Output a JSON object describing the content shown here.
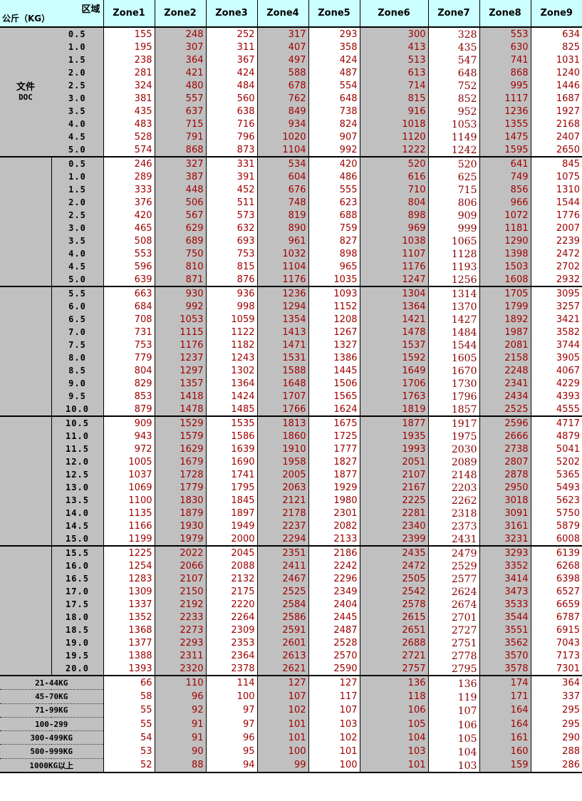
{
  "header": {
    "area_label": "区域",
    "kg_label": "公斤（KG）",
    "zones": [
      "Zone1",
      "Zone2",
      "Zone3",
      "Zone4",
      "Zone5",
      "Zone6",
      "Zone7",
      "Zone8",
      "Zone9"
    ]
  },
  "colors": {
    "header_bg": "#ccffff",
    "gray_bg": "#c0c0c0",
    "value_text": "#a00000"
  },
  "sections": [
    {
      "group_label": [
        "文件",
        "DOC"
      ],
      "rows": [
        {
          "weight": "0.5",
          "values": [
            155,
            248,
            252,
            317,
            293,
            300,
            328,
            553,
            634
          ]
        },
        {
          "weight": "1.0",
          "values": [
            195,
            307,
            311,
            407,
            358,
            413,
            435,
            630,
            825
          ]
        },
        {
          "weight": "1.5",
          "values": [
            238,
            364,
            367,
            497,
            424,
            513,
            547,
            741,
            1031
          ]
        },
        {
          "weight": "2.0",
          "values": [
            281,
            421,
            424,
            588,
            487,
            613,
            648,
            868,
            1240
          ]
        },
        {
          "weight": "2.5",
          "values": [
            324,
            480,
            484,
            678,
            554,
            714,
            752,
            995,
            1446
          ]
        },
        {
          "weight": "3.0",
          "values": [
            381,
            557,
            560,
            762,
            648,
            815,
            852,
            1117,
            1687
          ]
        },
        {
          "weight": "3.5",
          "values": [
            435,
            637,
            638,
            849,
            738,
            916,
            952,
            1236,
            1927
          ]
        },
        {
          "weight": "4.0",
          "values": [
            483,
            715,
            716,
            934,
            824,
            1018,
            1053,
            1355,
            2168
          ]
        },
        {
          "weight": "4.5",
          "values": [
            528,
            791,
            796,
            1020,
            907,
            1120,
            1149,
            1475,
            2407
          ]
        },
        {
          "weight": "5.0",
          "values": [
            574,
            868,
            873,
            1104,
            992,
            1222,
            1242,
            1595,
            2650
          ]
        }
      ]
    },
    {
      "rows": [
        {
          "weight": "0.5",
          "values": [
            246,
            327,
            331,
            534,
            420,
            520,
            520,
            641,
            845
          ]
        },
        {
          "weight": "1.0",
          "values": [
            289,
            387,
            391,
            604,
            486,
            616,
            625,
            749,
            1075
          ]
        },
        {
          "weight": "1.5",
          "values": [
            333,
            448,
            452,
            676,
            555,
            710,
            715,
            856,
            1310
          ]
        },
        {
          "weight": "2.0",
          "values": [
            376,
            506,
            511,
            748,
            623,
            804,
            806,
            966,
            1544
          ]
        },
        {
          "weight": "2.5",
          "values": [
            420,
            567,
            573,
            819,
            688,
            898,
            909,
            1072,
            1776
          ]
        },
        {
          "weight": "3.0",
          "values": [
            465,
            629,
            632,
            890,
            759,
            969,
            999,
            1181,
            2007
          ]
        },
        {
          "weight": "3.5",
          "values": [
            508,
            689,
            693,
            961,
            827,
            1038,
            1065,
            1290,
            2239
          ]
        },
        {
          "weight": "4.0",
          "values": [
            553,
            750,
            753,
            1032,
            898,
            1107,
            1128,
            1398,
            2472
          ]
        },
        {
          "weight": "4.5",
          "values": [
            596,
            810,
            815,
            1104,
            965,
            1176,
            1193,
            1503,
            2702
          ]
        },
        {
          "weight": "5.0",
          "values": [
            639,
            871,
            876,
            1176,
            1035,
            1247,
            1256,
            1608,
            2932
          ]
        }
      ]
    },
    {
      "rows": [
        {
          "weight": "5.5",
          "values": [
            663,
            930,
            936,
            1236,
            1093,
            1304,
            1314,
            1705,
            3095
          ]
        },
        {
          "weight": "6.0",
          "values": [
            684,
            992,
            998,
            1294,
            1152,
            1364,
            1370,
            1799,
            3257
          ]
        },
        {
          "weight": "6.5",
          "values": [
            708,
            1053,
            1059,
            1354,
            1208,
            1421,
            1427,
            1892,
            3421
          ]
        },
        {
          "weight": "7.0",
          "values": [
            731,
            1115,
            1122,
            1413,
            1267,
            1478,
            1484,
            1987,
            3582
          ]
        },
        {
          "weight": "7.5",
          "values": [
            753,
            1176,
            1182,
            1471,
            1327,
            1537,
            1544,
            2081,
            3744
          ]
        },
        {
          "weight": "8.0",
          "values": [
            779,
            1237,
            1243,
            1531,
            1386,
            1592,
            1605,
            2158,
            3905
          ]
        },
        {
          "weight": "8.5",
          "values": [
            804,
            1297,
            1302,
            1588,
            1445,
            1649,
            1670,
            2248,
            4067
          ]
        },
        {
          "weight": "9.0",
          "values": [
            829,
            1357,
            1364,
            1648,
            1506,
            1706,
            1730,
            2341,
            4229
          ]
        },
        {
          "weight": "9.5",
          "values": [
            853,
            1418,
            1424,
            1707,
            1565,
            1763,
            1796,
            2434,
            4393
          ]
        },
        {
          "weight": "10.0",
          "values": [
            879,
            1478,
            1485,
            1766,
            1624,
            1819,
            1857,
            2525,
            4555
          ]
        }
      ]
    },
    {
      "rows": [
        {
          "weight": "10.5",
          "values": [
            909,
            1529,
            1535,
            1813,
            1675,
            1877,
            1917,
            2596,
            4717
          ]
        },
        {
          "weight": "11.0",
          "values": [
            943,
            1579,
            1586,
            1860,
            1725,
            1935,
            1975,
            2666,
            4879
          ]
        },
        {
          "weight": "11.5",
          "values": [
            972,
            1629,
            1639,
            1910,
            1777,
            1993,
            2030,
            2738,
            5041
          ]
        },
        {
          "weight": "12.0",
          "values": [
            1005,
            1679,
            1690,
            1958,
            1827,
            2051,
            2089,
            2807,
            5202
          ]
        },
        {
          "weight": "12.5",
          "values": [
            1037,
            1728,
            1741,
            2005,
            1877,
            2107,
            2148,
            2878,
            5365
          ]
        },
        {
          "weight": "13.0",
          "values": [
            1069,
            1779,
            1795,
            2063,
            1929,
            2167,
            2203,
            2950,
            5493
          ]
        },
        {
          "weight": "13.5",
          "values": [
            1100,
            1830,
            1845,
            2121,
            1980,
            2225,
            2262,
            3018,
            5623
          ]
        },
        {
          "weight": "14.0",
          "values": [
            1135,
            1879,
            1897,
            2178,
            2301,
            2281,
            2318,
            3091,
            5750
          ]
        },
        {
          "weight": "14.5",
          "values": [
            1166,
            1930,
            1949,
            2237,
            2082,
            2340,
            2373,
            3161,
            5879
          ]
        },
        {
          "weight": "15.0",
          "values": [
            1199,
            1979,
            2000,
            2294,
            2133,
            2399,
            2431,
            3231,
            6008
          ]
        }
      ]
    },
    {
      "rows": [
        {
          "weight": "15.5",
          "values": [
            1225,
            2022,
            2045,
            2351,
            2186,
            2435,
            2479,
            3293,
            6139
          ]
        },
        {
          "weight": "16.0",
          "values": [
            1254,
            2066,
            2088,
            2411,
            2242,
            2472,
            2529,
            3352,
            6268
          ]
        },
        {
          "weight": "16.5",
          "values": [
            1283,
            2107,
            2132,
            2467,
            2296,
            2505,
            2577,
            3414,
            6398
          ]
        },
        {
          "weight": "17.0",
          "values": [
            1309,
            2150,
            2175,
            2525,
            2349,
            2542,
            2624,
            3473,
            6527
          ]
        },
        {
          "weight": "17.5",
          "values": [
            1337,
            2192,
            2220,
            2584,
            2404,
            2578,
            2674,
            3533,
            6659
          ]
        },
        {
          "weight": "18.0",
          "values": [
            1352,
            2233,
            2264,
            2586,
            2445,
            2615,
            2701,
            3544,
            6787
          ]
        },
        {
          "weight": "18.5",
          "values": [
            1368,
            2273,
            2309,
            2591,
            2487,
            2651,
            2727,
            3551,
            6915
          ]
        },
        {
          "weight": "19.0",
          "values": [
            1377,
            2293,
            2353,
            2601,
            2528,
            2688,
            2751,
            3562,
            7043
          ]
        },
        {
          "weight": "19.5",
          "values": [
            1388,
            2311,
            2364,
            2613,
            2570,
            2721,
            2778,
            3570,
            7173
          ]
        },
        {
          "weight": "20.0",
          "values": [
            1393,
            2320,
            2378,
            2621,
            2590,
            2757,
            2795,
            3578,
            7301
          ]
        }
      ]
    }
  ],
  "bulk_rows": [
    {
      "label": "21-44KG",
      "values": [
        66,
        110,
        114,
        127,
        127,
        136,
        136,
        174,
        364
      ]
    },
    {
      "label": "45-70KG",
      "values": [
        58,
        96,
        100,
        107,
        117,
        118,
        119,
        171,
        337
      ]
    },
    {
      "label": "71-99KG",
      "values": [
        55,
        92,
        97,
        102,
        107,
        106,
        107,
        164,
        295
      ]
    },
    {
      "label": "100-299",
      "values": [
        55,
        91,
        97,
        101,
        103,
        105,
        106,
        164,
        295
      ]
    },
    {
      "label": "300-499KG",
      "values": [
        54,
        91,
        96,
        101,
        102,
        104,
        105,
        161,
        290
      ]
    },
    {
      "label": "500-999KG",
      "values": [
        53,
        90,
        95,
        100,
        101,
        103,
        104,
        160,
        288
      ]
    },
    {
      "label": "1000KG以上",
      "values": [
        52,
        88,
        94,
        99,
        100,
        101,
        103,
        159,
        286
      ]
    }
  ]
}
